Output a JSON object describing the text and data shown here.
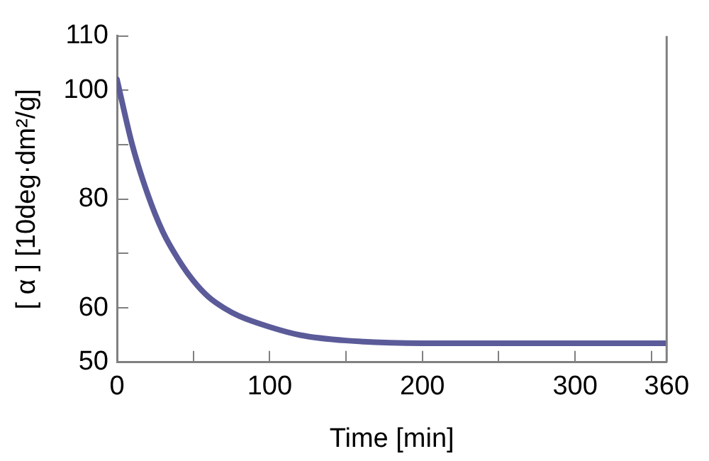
{
  "chart_data": {
    "type": "line",
    "xlabel": "Time [min]",
    "ylabel": "[ α ] [10deg·dm²/g]",
    "xlim": [
      0,
      360
    ],
    "xticks": [
      0,
      {
        "value": 50,
        "label": null
      },
      100,
      {
        "value": 150,
        "label": null
      },
      200,
      {
        "value": 250,
        "label": null
      },
      300,
      {
        "value": 350,
        "label": null
      },
      360
    ],
    "ylim": [
      50,
      110
    ],
    "yticks": [
      50,
      60,
      {
        "value": 70,
        "label": null
      },
      80,
      {
        "value": 90,
        "label": null
      },
      100,
      110
    ],
    "grid": false,
    "legend": false,
    "marker": "none",
    "line_style": "solid",
    "series": [
      {
        "color": "#5b5b9a",
        "x": [
          0,
          10,
          20,
          30,
          40,
          50,
          60,
          70,
          80,
          100,
          120,
          150,
          200,
          250,
          300,
          360
        ],
        "values": [
          102,
          90,
          81,
          74,
          69,
          65,
          62,
          60,
          58.5,
          56.5,
          55,
          54,
          53.5,
          53.5,
          53.5,
          53.5
        ]
      }
    ]
  }
}
